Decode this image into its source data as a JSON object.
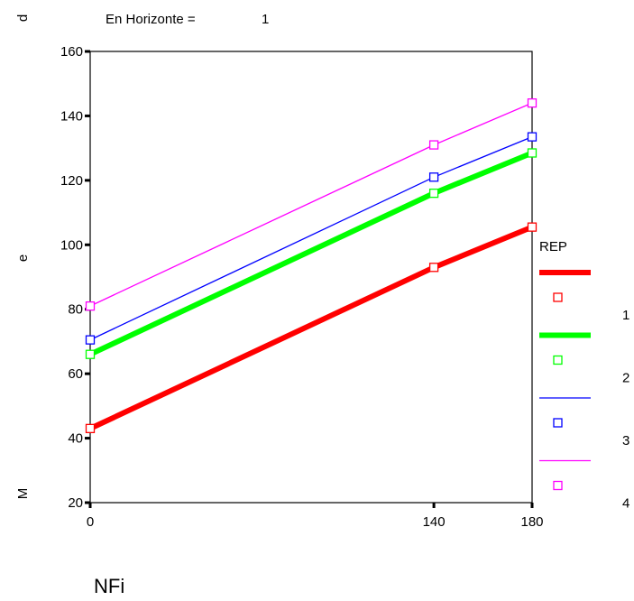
{
  "chart_data": {
    "type": "line",
    "subtitle": "En Horizonte =",
    "subtitle_value": "1",
    "xlabel": "NFi",
    "ylabel_chars": [
      "d",
      "e",
      "M"
    ],
    "x": [
      0,
      140,
      180
    ],
    "x_tick_labels": [
      "0",
      "140",
      "180"
    ],
    "y_ticks": [
      20,
      40,
      60,
      80,
      100,
      120,
      140,
      160
    ],
    "ylim": [
      20,
      160
    ],
    "grid": false,
    "legend_title": "REP",
    "legend_position": "right",
    "series": [
      {
        "name": "1",
        "values": [
          43,
          93,
          105.5
        ],
        "color": "#ff0000",
        "width": "thick"
      },
      {
        "name": "2",
        "values": [
          66,
          116,
          128.5
        ],
        "color": "#00ff00",
        "width": "thick"
      },
      {
        "name": "3",
        "values": [
          70.5,
          121,
          133.5
        ],
        "color": "#0000ff",
        "width": "thin"
      },
      {
        "name": "4",
        "values": [
          81,
          131,
          144
        ],
        "color": "#ff00ff",
        "width": "thin"
      }
    ]
  }
}
